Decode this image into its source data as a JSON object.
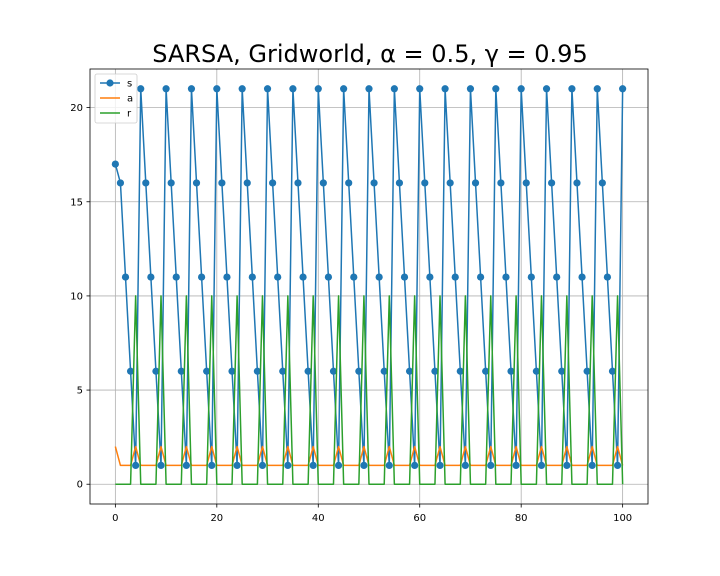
{
  "chart_data": {
    "type": "line",
    "title": "SARSA, Gridworld, α = 0.5, γ = 0.95",
    "xlabel": "",
    "ylabel": "",
    "xlim": [
      -5,
      105
    ],
    "ylim": [
      -1.05,
      22.05
    ],
    "xticks": [
      0,
      20,
      40,
      60,
      80,
      100
    ],
    "yticks": [
      0,
      5,
      10,
      15,
      20
    ],
    "grid": true,
    "legend_position": "top-left",
    "x": [
      0,
      1,
      2,
      3,
      4,
      5,
      6,
      7,
      8,
      9,
      10,
      11,
      12,
      13,
      14,
      15,
      16,
      17,
      18,
      19,
      20,
      21,
      22,
      23,
      24,
      25,
      26,
      27,
      28,
      29,
      30,
      31,
      32,
      33,
      34,
      35,
      36,
      37,
      38,
      39,
      40,
      41,
      42,
      43,
      44,
      45,
      46,
      47,
      48,
      49,
      50,
      51,
      52,
      53,
      54,
      55,
      56,
      57,
      58,
      59,
      60,
      61,
      62,
      63,
      64,
      65,
      66,
      67,
      68,
      69,
      70,
      71,
      72,
      73,
      74,
      75,
      76,
      77,
      78,
      79,
      80,
      81,
      82,
      83,
      84,
      85,
      86,
      87,
      88,
      89,
      90,
      91,
      92,
      93,
      94,
      95,
      96,
      97,
      98,
      99,
      100
    ],
    "series": [
      {
        "name": "s",
        "color": "#1f77b4",
        "marker": "circle",
        "values": [
          17,
          16,
          11,
          6,
          1,
          21,
          16,
          11,
          6,
          1,
          21,
          16,
          11,
          6,
          1,
          21,
          16,
          11,
          6,
          1,
          21,
          16,
          11,
          6,
          1,
          21,
          16,
          11,
          6,
          1,
          21,
          16,
          11,
          6,
          1,
          21,
          16,
          11,
          6,
          1,
          21,
          16,
          11,
          6,
          1,
          21,
          16,
          11,
          6,
          1,
          21,
          16,
          11,
          6,
          1,
          21,
          16,
          11,
          6,
          1,
          21,
          16,
          11,
          6,
          1,
          21,
          16,
          11,
          6,
          1,
          21,
          16,
          11,
          6,
          1,
          21,
          16,
          11,
          6,
          1,
          21,
          16,
          11,
          6,
          1,
          21,
          16,
          11,
          6,
          1,
          21,
          16,
          11,
          6,
          1,
          21,
          16,
          11,
          6,
          1,
          21
        ]
      },
      {
        "name": "a",
        "color": "#ff7f0e",
        "marker": "none",
        "values": [
          2,
          1,
          1,
          1,
          2,
          1,
          1,
          1,
          1,
          2,
          1,
          1,
          1,
          1,
          2,
          1,
          1,
          1,
          1,
          2,
          1,
          1,
          1,
          1,
          2,
          1,
          1,
          1,
          1,
          2,
          1,
          1,
          1,
          1,
          2,
          1,
          1,
          1,
          1,
          2,
          1,
          1,
          1,
          1,
          2,
          1,
          1,
          1,
          1,
          2,
          1,
          1,
          1,
          1,
          2,
          1,
          1,
          1,
          1,
          2,
          1,
          1,
          1,
          1,
          2,
          1,
          1,
          1,
          1,
          2,
          1,
          1,
          1,
          1,
          2,
          1,
          1,
          1,
          1,
          2,
          1,
          1,
          1,
          1,
          2,
          1,
          1,
          1,
          1,
          2,
          1,
          1,
          1,
          1,
          2,
          1,
          1,
          1,
          1,
          2,
          1
        ]
      },
      {
        "name": "r",
        "color": "#2ca02c",
        "marker": "none",
        "values": [
          0,
          0,
          0,
          0,
          10,
          0,
          0,
          0,
          0,
          10,
          0,
          0,
          0,
          0,
          10,
          0,
          0,
          0,
          0,
          10,
          0,
          0,
          0,
          0,
          10,
          0,
          0,
          0,
          0,
          10,
          0,
          0,
          0,
          0,
          10,
          0,
          0,
          0,
          0,
          10,
          0,
          0,
          0,
          0,
          10,
          0,
          0,
          0,
          0,
          10,
          0,
          0,
          0,
          0,
          10,
          0,
          0,
          0,
          0,
          10,
          0,
          0,
          0,
          0,
          10,
          0,
          0,
          0,
          0,
          10,
          0,
          0,
          0,
          0,
          10,
          0,
          0,
          0,
          0,
          10,
          0,
          0,
          0,
          0,
          10,
          0,
          0,
          0,
          0,
          10,
          0,
          0,
          0,
          0,
          10,
          0,
          0,
          0,
          0,
          10,
          0
        ]
      }
    ]
  }
}
